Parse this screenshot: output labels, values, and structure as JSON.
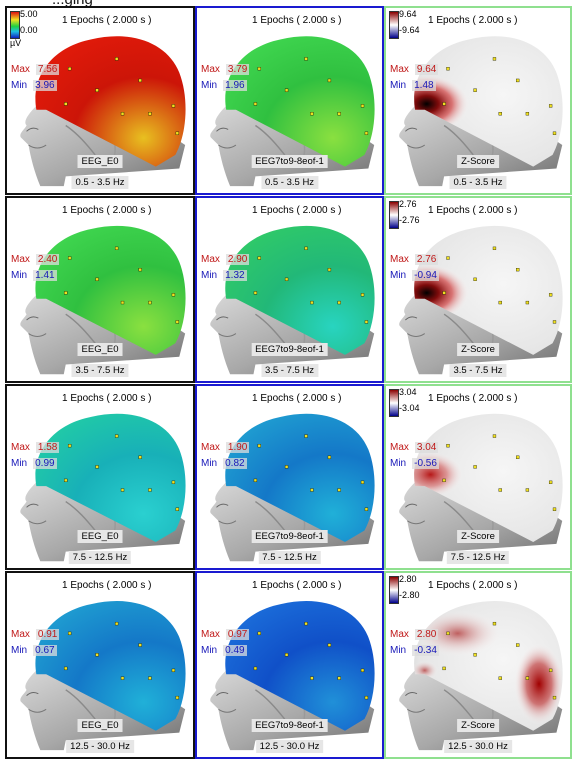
{
  "header_fragment": "...ging",
  "colors": {
    "panel_border_black": "#111111",
    "panel_border_blue": "#1a1ad0",
    "panel_border_green": "#8fe08f",
    "max_text": "#c01818",
    "min_text": "#1818b8"
  },
  "rows": [
    {
      "band": "0.5 - 3.5 Hz",
      "panels": [
        {
          "title": "1 Epochs ( 2.000 s )",
          "max": "7.56",
          "min": "3.96",
          "label": "EEG_E0",
          "map": "rainbow-red"
        },
        {
          "title": "1 Epochs ( 2.000 s )",
          "max": "3.79",
          "min": "1.96",
          "label": "EEG7to9-8eof-1",
          "map": "rainbow-green"
        },
        {
          "title": "1 Epochs ( 2.000 s )",
          "max": "9.64",
          "min": "1.48",
          "label": "Z-Score",
          "map": "zscore-frontal",
          "scale_top": "9.64",
          "scale_bottom": "-9.64"
        }
      ],
      "scale_top": "5.00",
      "scale_bottom": "0.00",
      "scale_unit": "µV"
    },
    {
      "band": "3.5 - 7.5 Hz",
      "panels": [
        {
          "title": "1 Epochs ( 2.000 s )",
          "max": "2.40",
          "min": "1.41",
          "label": "EEG_E0",
          "map": "rainbow-green"
        },
        {
          "title": "1 Epochs ( 2.000 s )",
          "max": "2.90",
          "min": "1.32",
          "label": "EEG7to9-8eof-1",
          "map": "rainbow-teal"
        },
        {
          "title": "1 Epochs ( 2.000 s )",
          "max": "2.76",
          "min": "-0.94",
          "label": "Z-Score",
          "map": "zscore-frontal",
          "scale_top": "2.76",
          "scale_bottom": "-2.76"
        }
      ]
    },
    {
      "band": "7.5 - 12.5 Hz",
      "panels": [
        {
          "title": "1 Epochs ( 2.000 s )",
          "max": "1.58",
          "min": "0.99",
          "label": "EEG_E0",
          "map": "rainbow-cyan"
        },
        {
          "title": "1 Epochs ( 2.000 s )",
          "max": "1.90",
          "min": "0.82",
          "label": "EEG7to9-8eof-1",
          "map": "rainbow-blue"
        },
        {
          "title": "1 Epochs ( 2.000 s )",
          "max": "3.04",
          "min": "-0.56",
          "label": "Z-Score",
          "map": "zscore-light",
          "scale_top": "3.04",
          "scale_bottom": "-3.04"
        }
      ]
    },
    {
      "band": "12.5 - 30.0 Hz",
      "panels": [
        {
          "title": "1 Epochs ( 2.000 s )",
          "max": "0.91",
          "min": "0.67",
          "label": "EEG_E0",
          "map": "rainbow-blue"
        },
        {
          "title": "1 Epochs ( 2.000 s )",
          "max": "0.97",
          "min": "0.49",
          "label": "EEG7to9-8eof-1",
          "map": "rainbow-deepblue"
        },
        {
          "title": "1 Epochs ( 2.000 s )",
          "max": "2.80",
          "min": "-0.34",
          "label": "Z-Score",
          "map": "zscore-temporal",
          "scale_top": "2.80",
          "scale_bottom": "-2.80"
        }
      ]
    }
  ]
}
